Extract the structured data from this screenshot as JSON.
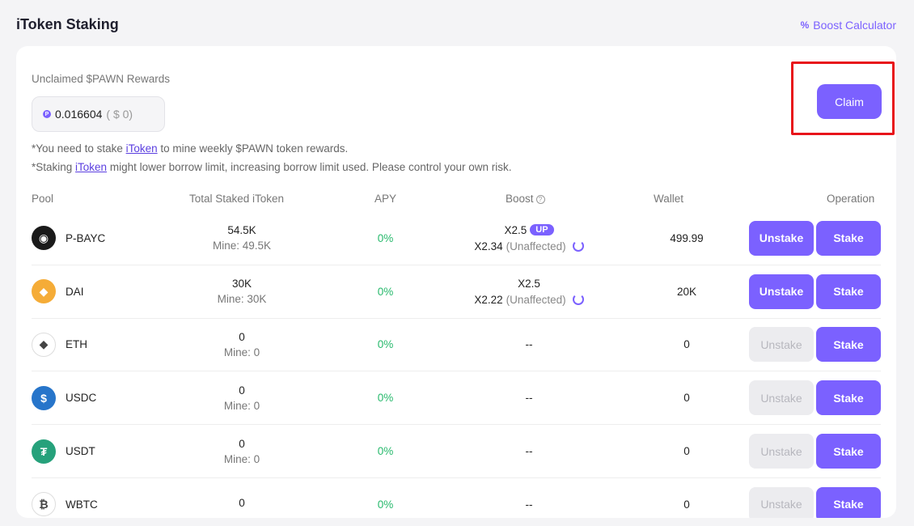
{
  "header": {
    "title": "iToken Staking",
    "boost_calculator": "Boost Calculator",
    "boost_calc_icon": "%"
  },
  "rewards": {
    "label": "Unclaimed $PAWN Rewards",
    "amount": "0.016604",
    "usd": "( $ 0)",
    "coin_glyph": "P",
    "claim_label": "Claim"
  },
  "notes": {
    "note1_prefix": "*You need to stake ",
    "note1_link": "iToken",
    "note1_suffix": " to mine weekly $PAWN token rewards.",
    "note2_prefix": "*Staking ",
    "note2_link": "iToken",
    "note2_suffix": " might lower borrow limit, increasing borrow limit used. Please control your own risk."
  },
  "table": {
    "headers": {
      "pool": "Pool",
      "total_staked": "Total Staked iToken",
      "apy": "APY",
      "boost": "Boost",
      "wallet": "Wallet",
      "operation": "Operation"
    },
    "rows": [
      {
        "pool": "P-BAYC",
        "icon": "bayc-icon",
        "icon_color": "#1a1a1a",
        "glyph": "◉",
        "total": "54.5K",
        "mine": "Mine: 49.5K",
        "apy": "0%",
        "boost1": "X2.5",
        "up": "UP",
        "boost2": "X2.34",
        "unaffected": "(Unaffected)",
        "wallet": "499.99",
        "unstake": "Unstake",
        "stake": "Stake",
        "unstake_enabled": true
      },
      {
        "pool": "DAI",
        "icon": "dai-icon",
        "icon_color": "#f5ac37",
        "glyph": "◆",
        "total": "30K",
        "mine": "Mine: 30K",
        "apy": "0%",
        "boost1": "X2.5",
        "up": "",
        "boost2": "X2.22",
        "unaffected": "(Unaffected)",
        "wallet": "20K",
        "unstake": "Unstake",
        "stake": "Stake",
        "unstake_enabled": true
      },
      {
        "pool": "ETH",
        "icon": "eth-icon",
        "icon_color": "#ffffff",
        "glyph": "◆",
        "total": "0",
        "mine": "Mine: 0",
        "apy": "0%",
        "boost1": "--",
        "up": "",
        "boost2": "",
        "unaffected": "",
        "wallet": "0",
        "unstake": "Unstake",
        "stake": "Stake",
        "unstake_enabled": false
      },
      {
        "pool": "USDC",
        "icon": "usdc-icon",
        "icon_color": "#2775ca",
        "glyph": "$",
        "total": "0",
        "mine": "Mine: 0",
        "apy": "0%",
        "boost1": "--",
        "up": "",
        "boost2": "",
        "unaffected": "",
        "wallet": "0",
        "unstake": "Unstake",
        "stake": "Stake",
        "unstake_enabled": false
      },
      {
        "pool": "USDT",
        "icon": "usdt-icon",
        "icon_color": "#26a17b",
        "glyph": "₮",
        "total": "0",
        "mine": "Mine: 0",
        "apy": "0%",
        "boost1": "--",
        "up": "",
        "boost2": "",
        "unaffected": "",
        "wallet": "0",
        "unstake": "Unstake",
        "stake": "Stake",
        "unstake_enabled": false
      },
      {
        "pool": "WBTC",
        "icon": "wbtc-icon",
        "icon_color": "#ffffff",
        "glyph": "₿",
        "total": "0",
        "mine": "",
        "apy": "0%",
        "boost1": "--",
        "up": "",
        "boost2": "",
        "unaffected": "",
        "wallet": "0",
        "unstake": "Unstake",
        "stake": "Stake",
        "unstake_enabled": false
      }
    ]
  },
  "colors": {
    "accent": "#7b61ff",
    "apy_green": "#27b96c",
    "highlight_red": "#e8141a"
  }
}
